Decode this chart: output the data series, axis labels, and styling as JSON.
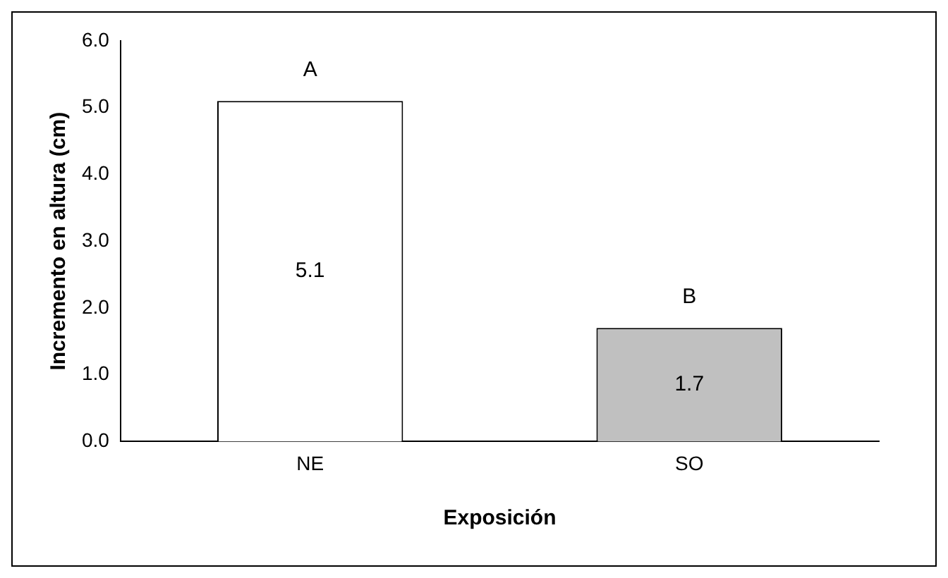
{
  "chart_data": {
    "type": "bar",
    "xlabel": "Exposición",
    "ylabel": "Incremento en altura (cm)",
    "categories": [
      "NE",
      "SO"
    ],
    "values": [
      5.1,
      1.7
    ],
    "colors": [
      "#ffffff",
      "#c0c0c0"
    ],
    "ylim": [
      0,
      6
    ],
    "yticks": [
      {
        "value": 0,
        "label": "0.0"
      },
      {
        "value": 1,
        "label": "1.0"
      },
      {
        "value": 2,
        "label": "2.0"
      },
      {
        "value": 3,
        "label": "3.0"
      },
      {
        "value": 4,
        "label": "4.0"
      },
      {
        "value": 5,
        "label": "5.0"
      },
      {
        "value": 6,
        "label": "6.0"
      }
    ],
    "data_labels": true,
    "grid": false,
    "legend": false,
    "annotations": [
      {
        "text": "A",
        "x": "NE",
        "y": 5.1
      },
      {
        "text": "B",
        "x": "SO",
        "y": 1.7
      }
    ]
  }
}
